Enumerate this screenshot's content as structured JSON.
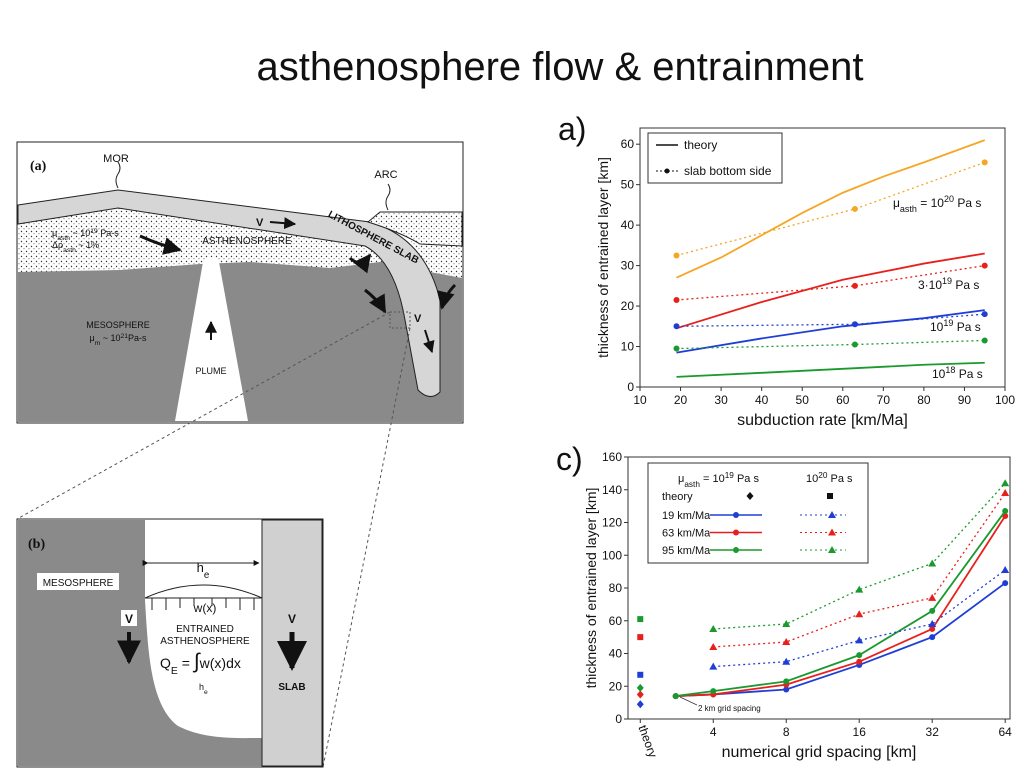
{
  "title": "asthenosphere flow & entrainment",
  "diagram_a": {
    "label": "(a)",
    "mor": "MOR",
    "arc": "ARC",
    "mu_asth": [
      "μ",
      "asth",
      " ~ 10",
      "19",
      " Pa-s"
    ],
    "drho": [
      "Δρ",
      "asth",
      " ~ 1%"
    ],
    "asthenosphere": "ASTHENOSPHERE",
    "slab": "LITHOSPHERE SLAB",
    "v_top": "V",
    "v_slab": "V",
    "mesosphere": "MESOSPHERE",
    "mu_m": [
      "μ",
      "m",
      " ~ 10",
      "21",
      "Pa-s"
    ],
    "plume": "PLUME"
  },
  "diagram_b": {
    "label": "(b)",
    "mesosphere": "MESOSPHERE",
    "h_e": [
      "h",
      "e"
    ],
    "w": "w(x)",
    "entrained": [
      "ENTRAINED",
      "ASTHENOSPHERE"
    ],
    "q": [
      "Q",
      "E",
      " = ",
      "∫",
      "w(x)dx"
    ],
    "limit": [
      "h",
      "e"
    ],
    "v_left": "V",
    "v_right": "V",
    "slab": "SLAB"
  },
  "chart_data": [
    {
      "type": "line",
      "panel": "a)",
      "xlabel": "subduction rate [km/Ma]",
      "ylabel": "thickness of entrained layer [km]",
      "xlim": [
        10,
        100
      ],
      "xticks": [
        10,
        20,
        30,
        40,
        50,
        60,
        70,
        80,
        90,
        100
      ],
      "ylim": [
        0,
        64
      ],
      "yticks": [
        0,
        10,
        20,
        30,
        40,
        50,
        60
      ],
      "legend": [
        "theory",
        "slab bottom side"
      ],
      "annotations": [
        [
          "μ",
          "asth",
          " = 10",
          "20",
          " Pa s"
        ],
        [
          "3·10",
          "19",
          " Pa s"
        ],
        [
          "10",
          "19",
          " Pa s"
        ],
        [
          "10",
          "18",
          " Pa s"
        ]
      ],
      "series": [
        {
          "color": "#f5a623",
          "style": "solid",
          "marker": "none",
          "x": [
            19,
            30,
            40,
            50,
            60,
            70,
            80,
            95
          ],
          "values": [
            27,
            32,
            37.5,
            43,
            48,
            52,
            55.5,
            61
          ]
        },
        {
          "color": "#f5a623",
          "style": "dotted",
          "marker": "circle",
          "x": [
            19,
            63,
            95
          ],
          "values": [
            32.5,
            44,
            55.5
          ]
        },
        {
          "color": "#e8201c",
          "style": "solid",
          "marker": "none",
          "x": [
            19,
            40,
            60,
            80,
            95
          ],
          "values": [
            14.5,
            21,
            26.5,
            30.5,
            33
          ]
        },
        {
          "color": "#e8201c",
          "style": "dotted",
          "marker": "circle",
          "x": [
            19,
            63,
            95
          ],
          "values": [
            21.5,
            25,
            30
          ]
        },
        {
          "color": "#1f3ed6",
          "style": "solid",
          "marker": "none",
          "x": [
            19,
            40,
            60,
            80,
            95
          ],
          "values": [
            8.5,
            12,
            15,
            17,
            19
          ]
        },
        {
          "color": "#1f3ed6",
          "style": "dotted",
          "marker": "circle",
          "x": [
            19,
            63,
            95
          ],
          "values": [
            15,
            15.5,
            18
          ]
        },
        {
          "color": "#1a9a2e",
          "style": "solid",
          "marker": "none",
          "x": [
            19,
            40,
            60,
            80,
            95
          ],
          "values": [
            2.5,
            3.5,
            4.5,
            5.5,
            6
          ]
        },
        {
          "color": "#1a9a2e",
          "style": "dotted",
          "marker": "circle",
          "x": [
            19,
            63,
            95
          ],
          "values": [
            9.5,
            10.5,
            11.5
          ]
        }
      ]
    },
    {
      "type": "line",
      "panel": "c)",
      "xlabel": "numerical grid spacing [km]",
      "ylabel": "thickness of entrained layer [km]",
      "xscale": "log",
      "xlim": [
        1.78,
        67
      ],
      "xticks": [
        {
          "value": 2,
          "label": "theory"
        },
        4,
        8,
        16,
        32,
        64
      ],
      "ylim": [
        0,
        160
      ],
      "yticks": [
        0,
        20,
        40,
        60,
        80,
        100,
        120,
        140,
        160
      ],
      "legend": {
        "header": [
          [
            "μ",
            "asth",
            " = 10",
            "19",
            " Pa s"
          ],
          [
            "10",
            "20",
            " Pa s"
          ]
        ],
        "theory": "theory",
        "rows": [
          "19 km/Ma",
          "63 km/Ma",
          "95 km/Ma"
        ]
      },
      "annotation": "2 km grid spacing",
      "series": [
        {
          "color": "#1f3ed6",
          "style": "solid",
          "marker": "circle",
          "x": [
            2.8,
            4,
            8,
            16,
            32,
            64
          ],
          "values": [
            14,
            15,
            18,
            33,
            50,
            83
          ]
        },
        {
          "color": "#e8201c",
          "style": "solid",
          "marker": "circle",
          "x": [
            2.8,
            4,
            8,
            16,
            32,
            64
          ],
          "values": [
            14,
            15,
            21,
            35,
            55,
            124
          ]
        },
        {
          "color": "#1a9a2e",
          "style": "solid",
          "marker": "circle",
          "x": [
            2.8,
            4,
            8,
            16,
            32,
            64
          ],
          "values": [
            14,
            17,
            23,
            39,
            66,
            127
          ]
        },
        {
          "color": "#1f3ed6",
          "style": "dotted",
          "marker": "triangle",
          "x": [
            4,
            8,
            16,
            32,
            64
          ],
          "values": [
            32,
            35,
            48,
            58,
            91
          ]
        },
        {
          "color": "#e8201c",
          "style": "dotted",
          "marker": "triangle",
          "x": [
            4,
            8,
            16,
            32,
            64
          ],
          "values": [
            44,
            47,
            64,
            74,
            138
          ]
        },
        {
          "color": "#1a9a2e",
          "style": "dotted",
          "marker": "triangle",
          "x": [
            4,
            8,
            16,
            32,
            64
          ],
          "values": [
            55,
            58,
            79,
            95,
            144
          ]
        },
        {
          "color": "#1f3ed6",
          "style": "none",
          "marker": "diamond",
          "x": [
            2
          ],
          "values": [
            9
          ]
        },
        {
          "color": "#e8201c",
          "style": "none",
          "marker": "diamond",
          "x": [
            2
          ],
          "values": [
            15
          ]
        },
        {
          "color": "#1a9a2e",
          "style": "none",
          "marker": "diamond",
          "x": [
            2
          ],
          "values": [
            19
          ]
        },
        {
          "color": "#1f3ed6",
          "style": "none",
          "marker": "square",
          "x": [
            2
          ],
          "values": [
            27
          ]
        },
        {
          "color": "#e8201c",
          "style": "none",
          "marker": "square",
          "x": [
            2
          ],
          "values": [
            50
          ]
        },
        {
          "color": "#1a9a2e",
          "style": "none",
          "marker": "square",
          "x": [
            2
          ],
          "values": [
            61
          ]
        }
      ]
    }
  ]
}
